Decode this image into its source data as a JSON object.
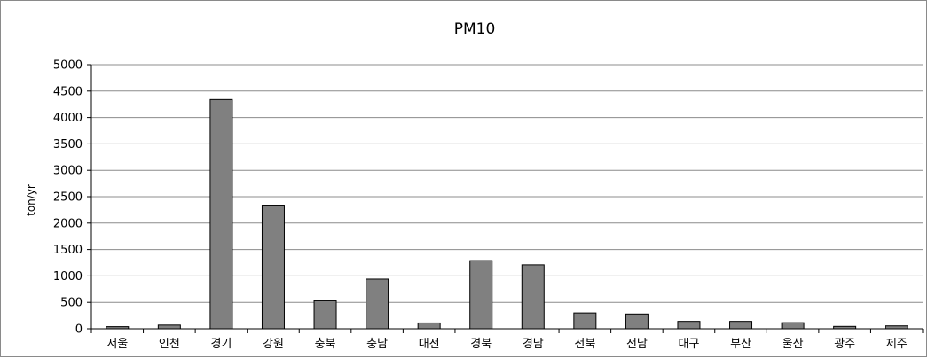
{
  "chart_data": {
    "type": "bar",
    "title": "PM10",
    "xlabel": "",
    "ylabel": "ton/yr",
    "categories": [
      "서울",
      "인천",
      "경기",
      "강원",
      "충북",
      "충남",
      "대전",
      "경북",
      "경남",
      "전북",
      "전남",
      "대구",
      "부산",
      "울산",
      "광주",
      "제주"
    ],
    "series": [
      {
        "values": [
          40,
          70,
          4340,
          2340,
          530,
          940,
          110,
          1290,
          1210,
          300,
          280,
          140,
          140,
          115,
          45,
          55
        ]
      }
    ],
    "yticks": [
      "0",
      "500",
      "1000",
      "1500",
      "2000",
      "2500",
      "3000",
      "3500",
      "4000",
      "4500",
      "5000"
    ],
    "ylim": [
      0,
      5000
    ],
    "grid": true,
    "legend": "none",
    "colors": {
      "bar": "#808080",
      "bar_stroke": "#000000",
      "grid": "#8c8c8c",
      "axis": "#000000"
    }
  }
}
